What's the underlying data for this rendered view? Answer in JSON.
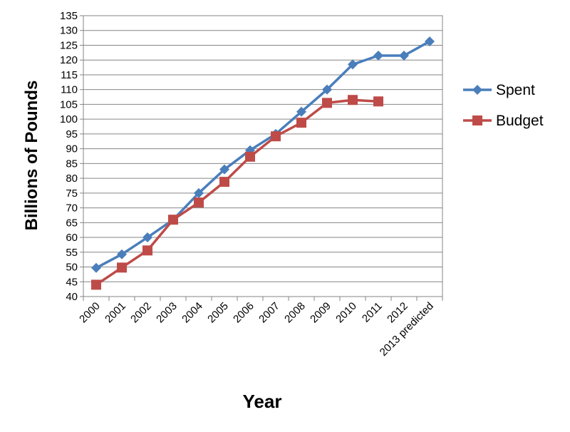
{
  "chart_data": {
    "type": "line",
    "title": "",
    "xlabel": "Year",
    "ylabel": "Billions of Pounds",
    "categories": [
      "2000",
      "2001",
      "2002",
      "2003",
      "2004",
      "2005",
      "2006",
      "2007",
      "2008",
      "2009",
      "2010",
      "2011",
      "2012",
      "2013 predicted"
    ],
    "ylim": [
      40,
      135
    ],
    "ytick_step": 5,
    "grid": true,
    "legend_position": "right",
    "series": [
      {
        "name": "Spent",
        "color": "#4a7ebb",
        "marker": "diamond",
        "values": [
          49.7,
          54.3,
          60.0,
          66.0,
          75.0,
          83.0,
          89.5,
          95.0,
          102.5,
          110.0,
          118.5,
          121.5,
          121.5,
          126.3
        ]
      },
      {
        "name": "Budget",
        "color": "#be4b48",
        "marker": "square",
        "values": [
          44.0,
          49.8,
          55.6,
          66.0,
          71.8,
          78.8,
          87.3,
          94.2,
          98.8,
          105.5,
          106.5,
          106.0,
          null,
          null
        ]
      }
    ]
  }
}
